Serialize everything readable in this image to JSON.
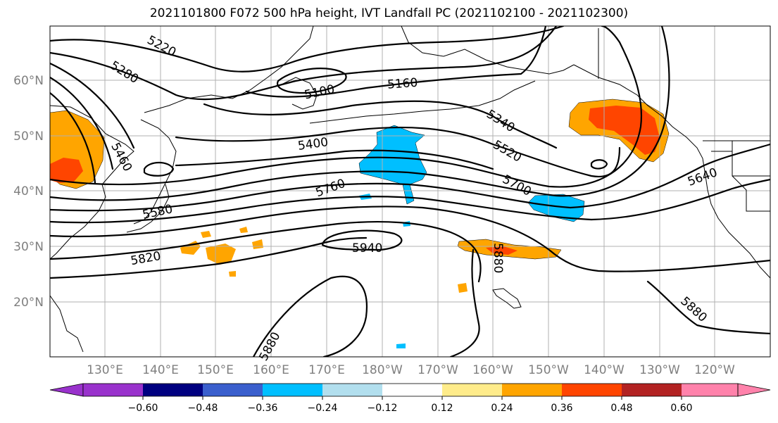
{
  "title": "2021101800 F072 500 hPa height, IVT Landfall PC (2021102100 - 2021102300)",
  "lat_labels": [
    "60°N",
    "50°N",
    "40°N",
    "30°N",
    "20°N"
  ],
  "lon_labels": [
    "130°E",
    "140°E",
    "150°E",
    "160°E",
    "170°E",
    "180°W",
    "170°W",
    "160°W",
    "150°W",
    "140°W",
    "130°W",
    "120°W"
  ],
  "contour_labels": [
    "5220",
    "5280",
    "5100",
    "5160",
    "5340",
    "5400",
    "5460",
    "5520",
    "5580",
    "5640",
    "5700",
    "5760",
    "5820",
    "5880",
    "5940",
    "5880",
    "5880"
  ],
  "colorbar": {
    "colors": [
      "#9932cc",
      "#000080",
      "#3a5fcd",
      "#00bfff",
      "#b2dfee",
      "#ffffff",
      "#ffffff",
      "#ffec8b",
      "#ffa500",
      "#ff4500",
      "#b22222",
      "#ff82ab"
    ],
    "ticks": [
      "−0.60",
      "−0.48",
      "−0.36",
      "−0.24",
      "−0.12",
      "0.12",
      "0.24",
      "0.36",
      "0.48",
      "0.60"
    ]
  },
  "colors": {
    "contour": "#000000",
    "grid": "#b0b0b0",
    "positive_low": "#ffa500",
    "positive_mid": "#ff4500",
    "negative": "#00bfff"
  }
}
